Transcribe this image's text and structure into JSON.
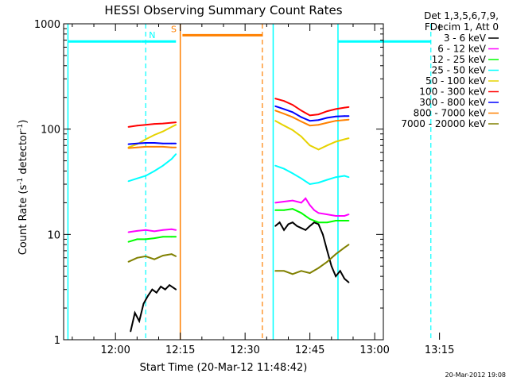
{
  "chart_data": {
    "type": "line",
    "title": "HESSI Observing Summary Count Rates",
    "xlabel": "Start Time (20-Mar-12 11:48:42)",
    "ylabel_main": "Count Rate (s",
    "ylabel_sup1": "-1",
    "ylabel_mid": " detector",
    "ylabel_sup2": "-1",
    "ylabel_end": ")",
    "yscale": "log",
    "ylim": [
      1,
      1000
    ],
    "xlim_minutes": [
      -12,
      62
    ],
    "x_reference": "12:00",
    "x_tick_labels": [
      {
        "label": "12:00",
        "min": 0
      },
      {
        "label": "12:15",
        "min": 15
      },
      {
        "label": "12:30",
        "min": 30
      },
      {
        "label": "12:45",
        "min": 45
      },
      {
        "label": "13:00",
        "min": 60
      },
      {
        "label": "13:15",
        "min": 75
      }
    ],
    "y_tick_labels": [
      {
        "label": "1",
        "value": 1
      },
      {
        "label": "10",
        "value": 10
      },
      {
        "label": "100",
        "value": 100
      },
      {
        "label": "1000",
        "value": 1000
      }
    ],
    "legend": {
      "header": [
        "Det 1,3,5,6,7,9,",
        "FDecim 1, Att 0"
      ],
      "placement": "right"
    },
    "series": [
      {
        "name": "3 - 6 keV",
        "color": "#000000",
        "segments": [
          [
            [
              3.5,
              1.2
            ],
            [
              4.5,
              1.8
            ],
            [
              5.5,
              1.5
            ],
            [
              6.5,
              2.2
            ],
            [
              7.5,
              2.6
            ],
            [
              8.5,
              3.0
            ],
            [
              9.5,
              2.8
            ],
            [
              10.5,
              3.2
            ],
            [
              11.5,
              3.0
            ],
            [
              12.5,
              3.3
            ],
            [
              13.5,
              3.1
            ],
            [
              14,
              3.0
            ]
          ],
          [
            [
              37,
              12
            ],
            [
              38,
              13
            ],
            [
              39,
              11
            ],
            [
              40,
              12.5
            ],
            [
              41,
              13
            ],
            [
              42,
              12
            ],
            [
              43,
              11.5
            ],
            [
              44,
              11
            ],
            [
              45,
              12
            ],
            [
              46,
              13
            ],
            [
              47,
              12.5
            ],
            [
              48,
              10
            ],
            [
              49,
              7
            ],
            [
              50,
              5
            ],
            [
              51,
              4
            ],
            [
              52,
              4.5
            ],
            [
              53,
              3.8
            ],
            [
              54,
              3.5
            ]
          ]
        ]
      },
      {
        "name": "6 - 12 keV",
        "color": "#ff00ff",
        "segments": [
          [
            [
              3,
              10.5
            ],
            [
              5,
              10.8
            ],
            [
              7,
              11
            ],
            [
              9,
              10.7
            ],
            [
              11,
              11
            ],
            [
              13,
              11.2
            ],
            [
              14,
              11
            ]
          ],
          [
            [
              37,
              20
            ],
            [
              39,
              20.5
            ],
            [
              41,
              21
            ],
            [
              43,
              20
            ],
            [
              44,
              22
            ],
            [
              45,
              19
            ],
            [
              46,
              17
            ],
            [
              47,
              16
            ],
            [
              49,
              15.5
            ],
            [
              51,
              15
            ],
            [
              53,
              15
            ],
            [
              54,
              15.5
            ]
          ]
        ]
      },
      {
        "name": "12 - 25 keV",
        "color": "#00ff00",
        "segments": [
          [
            [
              3,
              8.5
            ],
            [
              5,
              9
            ],
            [
              7,
              9
            ],
            [
              9,
              9.2
            ],
            [
              11,
              9.5
            ],
            [
              13,
              9.5
            ],
            [
              14,
              9.5
            ]
          ],
          [
            [
              37,
              17
            ],
            [
              39,
              17
            ],
            [
              41,
              17.5
            ],
            [
              43,
              16
            ],
            [
              45,
              14
            ],
            [
              47,
              13
            ],
            [
              49,
              13
            ],
            [
              51,
              13.5
            ],
            [
              53,
              13.5
            ],
            [
              54,
              13.5
            ]
          ]
        ]
      },
      {
        "name": "25 - 50 keV",
        "color": "#00ffff",
        "segments": [
          [
            [
              3,
              32
            ],
            [
              5,
              34
            ],
            [
              7,
              36
            ],
            [
              9,
              40
            ],
            [
              11,
              45
            ],
            [
              13,
              52
            ],
            [
              14,
              58
            ]
          ],
          [
            [
              37,
              45
            ],
            [
              39,
              42
            ],
            [
              41,
              38
            ],
            [
              43,
              34
            ],
            [
              45,
              30
            ],
            [
              47,
              31
            ],
            [
              49,
              33
            ],
            [
              51,
              35
            ],
            [
              53,
              36
            ],
            [
              54,
              35
            ]
          ]
        ]
      },
      {
        "name": "50 - 100 keV",
        "color": "#e6d200",
        "segments": [
          [
            [
              3,
              67
            ],
            [
              5,
              72
            ],
            [
              7,
              80
            ],
            [
              9,
              88
            ],
            [
              11,
              95
            ],
            [
              13,
              105
            ],
            [
              14,
              110
            ]
          ],
          [
            [
              37,
              120
            ],
            [
              39,
              108
            ],
            [
              41,
              98
            ],
            [
              43,
              85
            ],
            [
              45,
              70
            ],
            [
              47,
              64
            ],
            [
              49,
              70
            ],
            [
              51,
              76
            ],
            [
              53,
              80
            ],
            [
              54,
              82
            ]
          ]
        ]
      },
      {
        "name": "100 - 300 keV",
        "color": "#ff0000",
        "segments": [
          [
            [
              3,
              105
            ],
            [
              5,
              108
            ],
            [
              7,
              110
            ],
            [
              9,
              112
            ],
            [
              11,
              113
            ],
            [
              13,
              115
            ],
            [
              14,
              116
            ]
          ],
          [
            [
              37,
              195
            ],
            [
              39,
              185
            ],
            [
              41,
              170
            ],
            [
              43,
              150
            ],
            [
              45,
              135
            ],
            [
              47,
              138
            ],
            [
              49,
              148
            ],
            [
              51,
              155
            ],
            [
              53,
              160
            ],
            [
              54,
              162
            ]
          ]
        ]
      },
      {
        "name": "300 - 800 keV",
        "color": "#0000ff",
        "segments": [
          [
            [
              3,
              72
            ],
            [
              5,
              73
            ],
            [
              7,
              74
            ],
            [
              9,
              74
            ],
            [
              11,
              73
            ],
            [
              13,
              73
            ],
            [
              14,
              73
            ]
          ],
          [
            [
              37,
              165
            ],
            [
              39,
              155
            ],
            [
              41,
              145
            ],
            [
              43,
              130
            ],
            [
              45,
              120
            ],
            [
              47,
              122
            ],
            [
              49,
              128
            ],
            [
              51,
              132
            ],
            [
              53,
              133
            ],
            [
              54,
              133
            ]
          ]
        ]
      },
      {
        "name": "800 - 7000 keV",
        "color": "#ff8000",
        "segments": [
          [
            [
              3,
              66
            ],
            [
              5,
              67
            ],
            [
              7,
              68
            ],
            [
              9,
              68
            ],
            [
              11,
              68
            ],
            [
              13,
              67
            ],
            [
              14,
              67
            ]
          ],
          [
            [
              37,
              150
            ],
            [
              39,
              140
            ],
            [
              41,
              130
            ],
            [
              43,
              118
            ],
            [
              45,
              108
            ],
            [
              47,
              110
            ],
            [
              49,
              115
            ],
            [
              51,
              120
            ],
            [
              53,
              122
            ],
            [
              54,
              123
            ]
          ]
        ]
      },
      {
        "name": "7000 - 20000 keV",
        "color": "#808000",
        "segments": [
          [
            [
              3,
              5.5
            ],
            [
              5,
              6
            ],
            [
              7,
              6.2
            ],
            [
              9,
              5.8
            ],
            [
              11,
              6.3
            ],
            [
              13,
              6.5
            ],
            [
              14,
              6.2
            ]
          ],
          [
            [
              37,
              4.5
            ],
            [
              39,
              4.5
            ],
            [
              41,
              4.2
            ],
            [
              43,
              4.5
            ],
            [
              45,
              4.3
            ],
            [
              47,
              4.8
            ],
            [
              49,
              5.5
            ],
            [
              51,
              6.5
            ],
            [
              53,
              7.5
            ],
            [
              54,
              8
            ]
          ]
        ]
      }
    ],
    "events": [
      {
        "label": "N",
        "color": "#00ffff",
        "level": 680,
        "solid_left_min": -11,
        "dashed_at_min": 7,
        "label_min": 8.5,
        "bar_segments": [
          [
            -11,
            6
          ],
          [
            6,
            14
          ]
        ]
      },
      {
        "label": "S",
        "color": "#ff8000",
        "level": 780,
        "solid_left_min": 15,
        "dashed_at_min": 34,
        "label_min": 13.5,
        "bar_segments": [
          [
            15.5,
            34
          ]
        ]
      }
    ],
    "extra_cyan": {
      "solid_left_min": 36.5,
      "right_solid_min": 51.5,
      "dashed_at_min": 73,
      "level": 680,
      "bar_segments": [
        [
          51.5,
          73
        ]
      ]
    },
    "footer_date": "20-Mar-2012 19:08"
  }
}
